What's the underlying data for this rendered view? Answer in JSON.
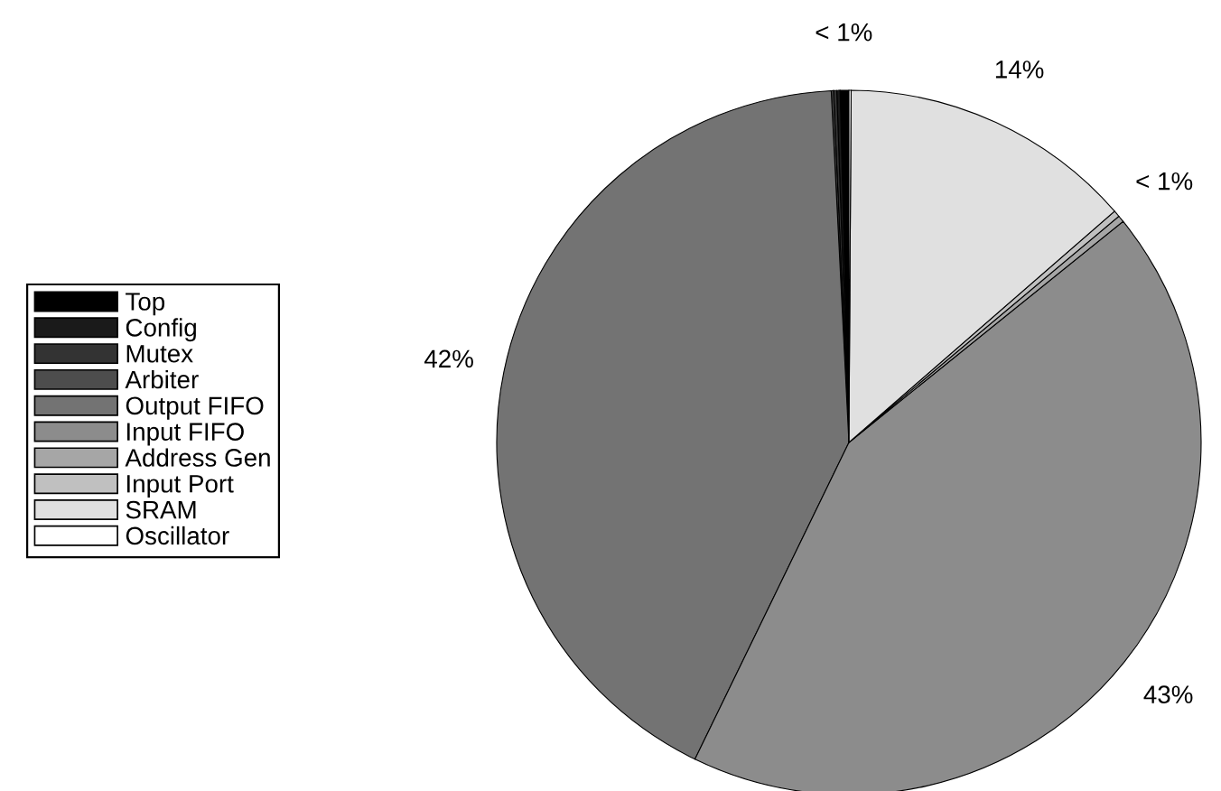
{
  "chart_data": {
    "type": "pie",
    "categories": [
      "Top",
      "Config",
      "Mutex",
      "Arbiter",
      "Output FIFO",
      "Input FIFO",
      "Address Gen",
      "Input Port",
      "SRAM",
      "Oscillator"
    ],
    "values": [
      0.4,
      0.15,
      0.15,
      0.1,
      42,
      43,
      0.3,
      0.3,
      13.5,
      0.1
    ],
    "colors": [
      "#000000",
      "#1a1a1a",
      "#333333",
      "#4d4d4d",
      "#737373",
      "#8c8c8c",
      "#a6a6a6",
      "#c0c0c0",
      "#e0e0e0",
      "#ffffff"
    ],
    "value_labels": [
      "< 1%",
      null,
      null,
      null,
      "42%",
      "43%",
      "< 1%",
      null,
      "14%",
      null
    ],
    "legend": "left"
  }
}
